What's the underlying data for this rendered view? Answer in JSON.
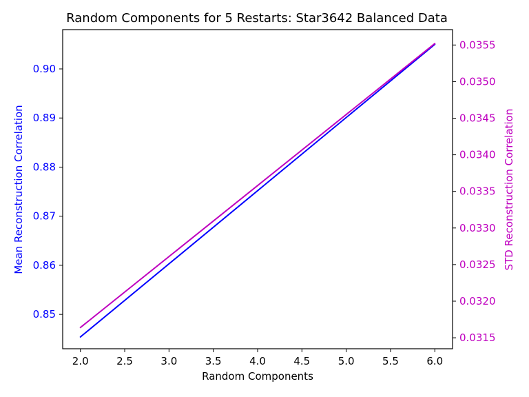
{
  "chart_data": {
    "type": "line",
    "title": "Random Components for 5 Restarts: Star3642 Balanced Data",
    "xlabel": "Random Components",
    "ylabel_left": "Mean Reconstruction Correlation",
    "ylabel_right": "STD Reconstruction Correlation",
    "xlim": [
      1.8,
      6.2
    ],
    "ylim_left": [
      0.843,
      0.908
    ],
    "ylim_right": [
      0.03135,
      0.03571
    ],
    "x_ticks": [
      "2.0",
      "2.5",
      "3.0",
      "3.5",
      "4.0",
      "4.5",
      "5.0",
      "5.5",
      "6.0"
    ],
    "y_left_ticks": [
      "0.85",
      "0.86",
      "0.87",
      "0.88",
      "0.89",
      "0.90"
    ],
    "y_right_ticks": [
      "0.0315",
      "0.0320",
      "0.0325",
      "0.0330",
      "0.0335",
      "0.0340",
      "0.0345",
      "0.0350",
      "0.0355"
    ],
    "series": [
      {
        "axis": "left",
        "color": "#0000ff",
        "x": [
          2,
          6
        ],
        "y": [
          0.8454,
          0.905
        ]
      },
      {
        "axis": "right",
        "color": "#bf00bf",
        "x": [
          2,
          6
        ],
        "y": [
          0.03164,
          0.03552
        ]
      }
    ],
    "left_axis_color": "#0000ff",
    "right_axis_color": "#bf00bf",
    "grid": false
  }
}
